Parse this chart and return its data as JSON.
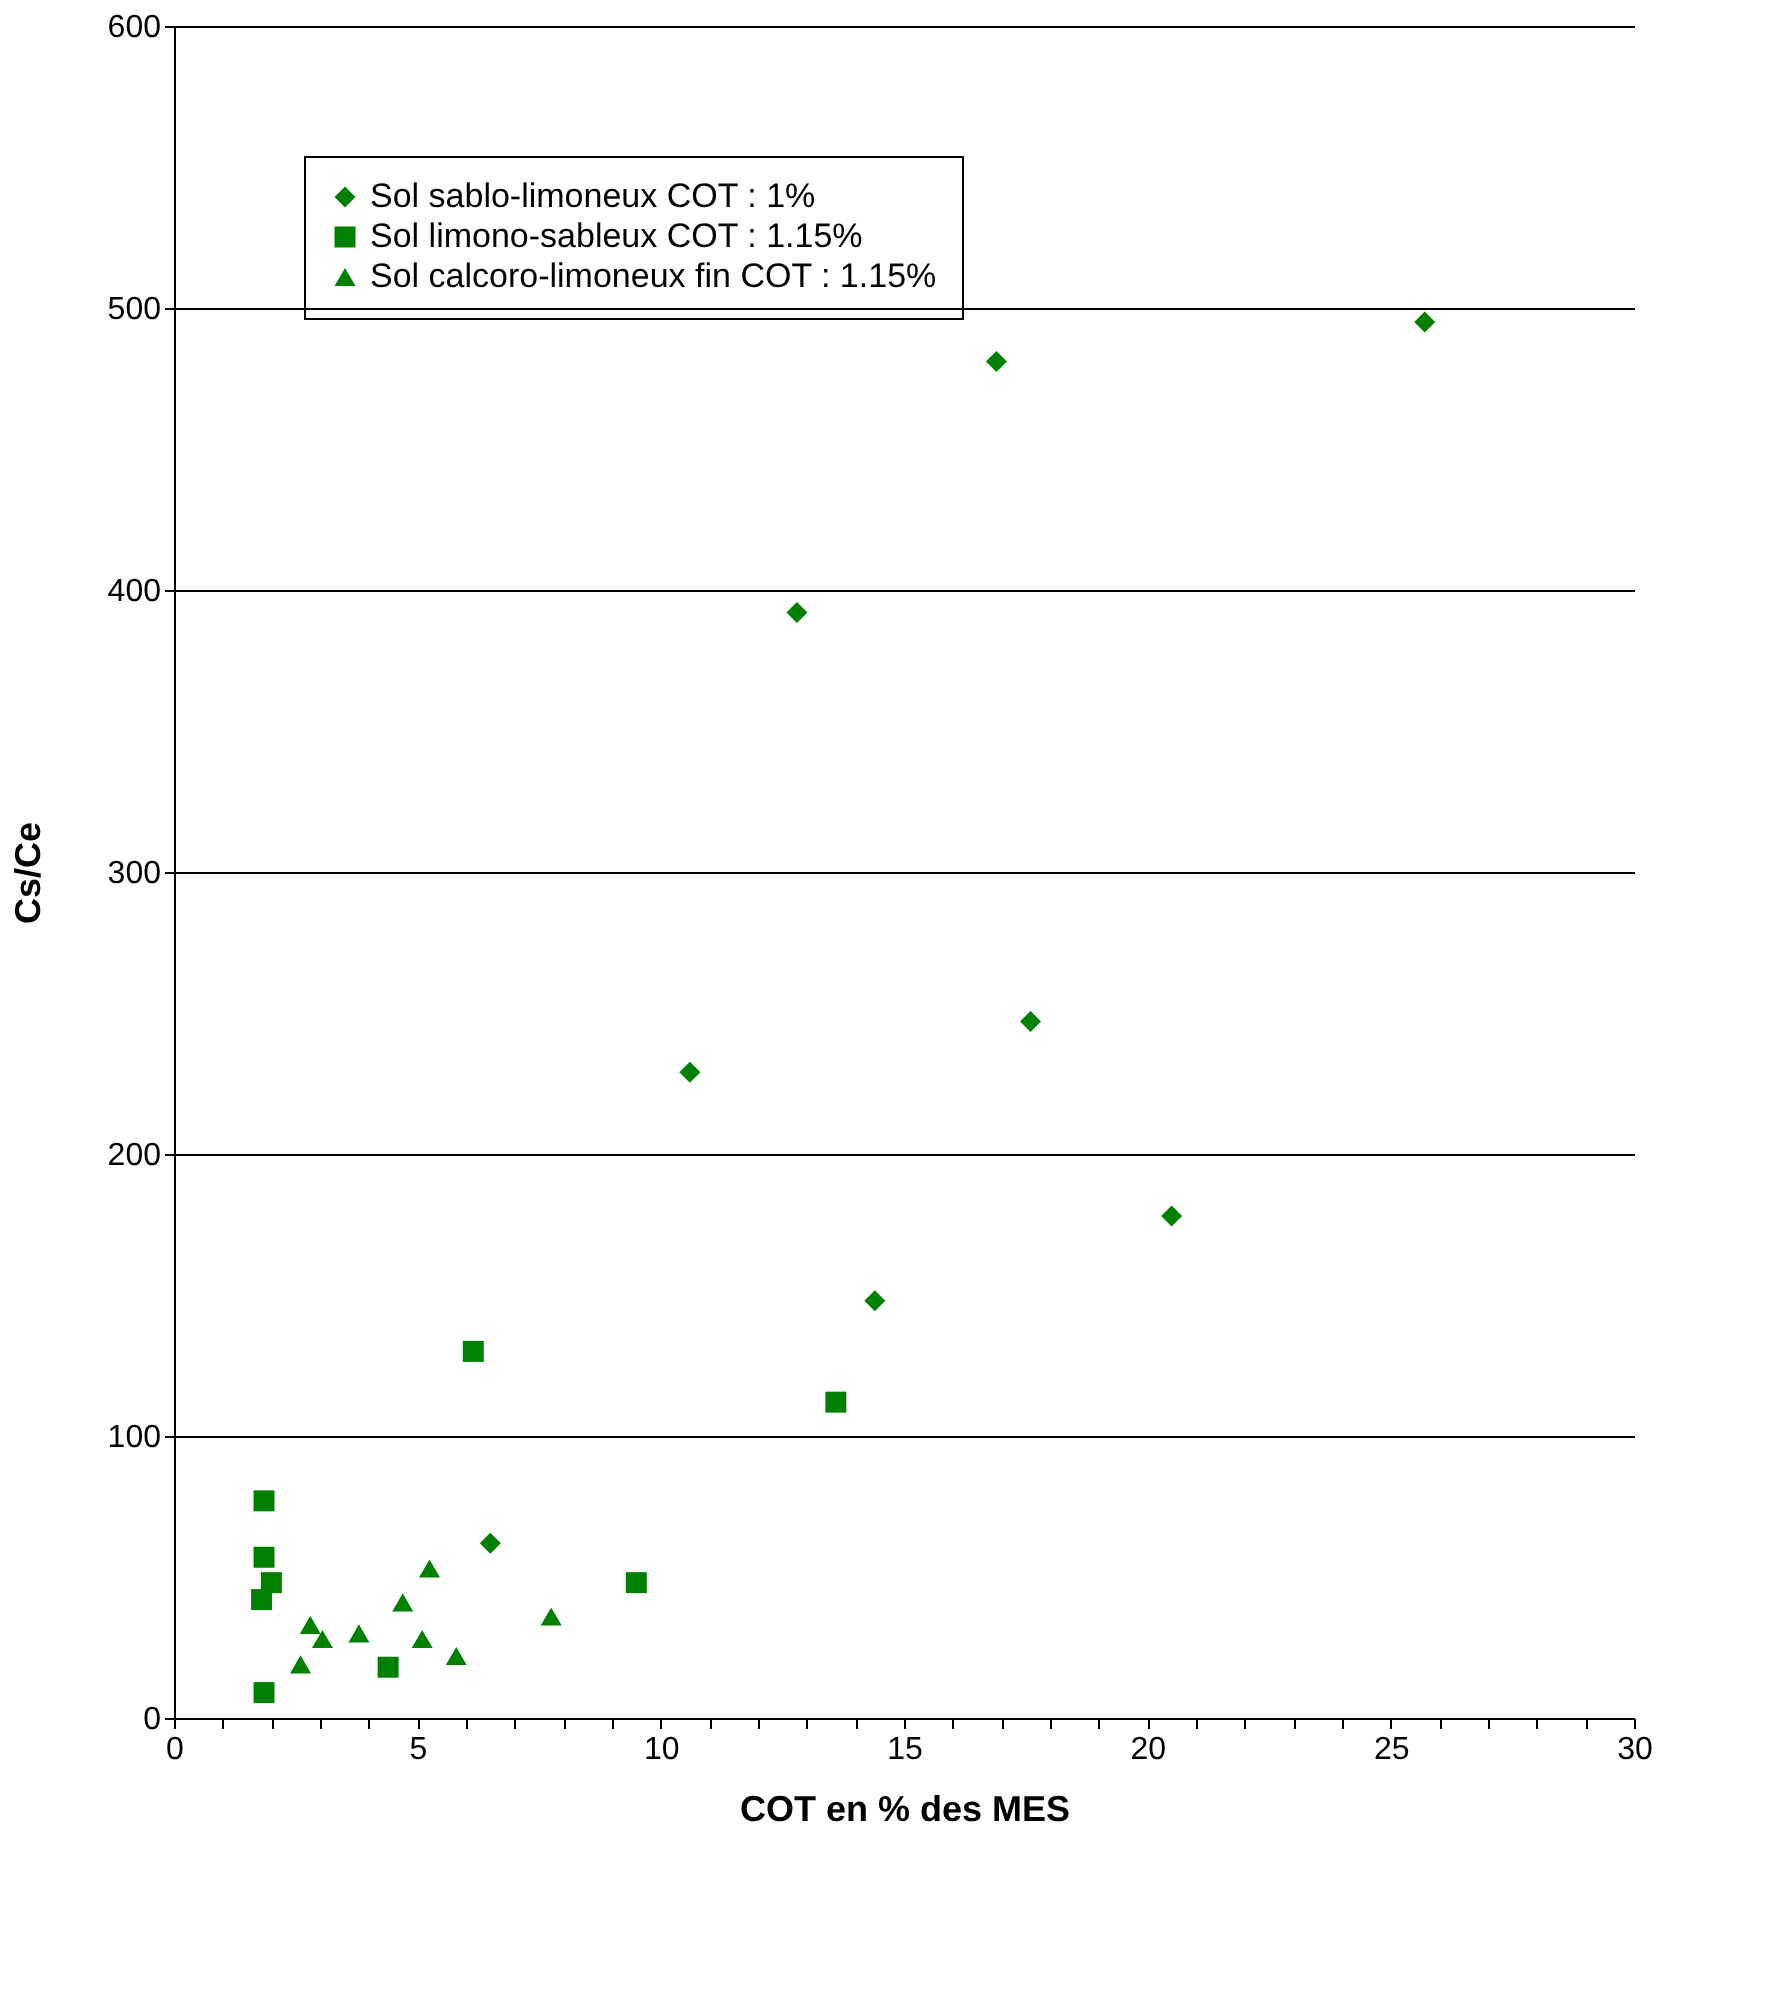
{
  "chart_data": {
    "type": "scatter",
    "xlabel": "COT en % des MES",
    "ylabel": "Cs/Ce",
    "xlim": [
      0,
      30
    ],
    "ylim": [
      0,
      600
    ],
    "xticks": [
      0,
      {
        "value": 1,
        "label": null
      },
      {
        "value": 2,
        "label": null
      },
      {
        "value": 3,
        "label": null
      },
      {
        "value": 4,
        "label": null
      },
      5,
      {
        "value": 6,
        "label": null
      },
      {
        "value": 7,
        "label": null
      },
      {
        "value": 8,
        "label": null
      },
      {
        "value": 9,
        "label": null
      },
      10,
      {
        "value": 11,
        "label": null
      },
      {
        "value": 12,
        "label": null
      },
      {
        "value": 13,
        "label": null
      },
      {
        "value": 14,
        "label": null
      },
      15,
      {
        "value": 16,
        "label": null
      },
      {
        "value": 17,
        "label": null
      },
      {
        "value": 18,
        "label": null
      },
      {
        "value": 19,
        "label": null
      },
      20,
      {
        "value": 21,
        "label": null
      },
      {
        "value": 22,
        "label": null
      },
      {
        "value": 23,
        "label": null
      },
      {
        "value": 24,
        "label": null
      },
      25,
      {
        "value": 26,
        "label": null
      },
      {
        "value": 27,
        "label": null
      },
      {
        "value": 28,
        "label": null
      },
      {
        "value": 29,
        "label": null
      },
      30
    ],
    "yticks": [
      0,
      100,
      200,
      300,
      400,
      500,
      600
    ],
    "grid": "y",
    "legend": "top left",
    "series": [
      {
        "name": "Sol sablo-limoneux COT : 1%",
        "color": "#008000",
        "marker": "diamond",
        "x": [
          6.5,
          10.6,
          12.8,
          14.4,
          16.9,
          17.6,
          20.5,
          25.7
        ],
        "values": [
          62,
          229,
          392,
          148,
          481,
          247,
          178,
          495
        ]
      },
      {
        "name": "Sol limono-sableux COT : 1.15%",
        "color": "#008000",
        "marker": "square",
        "x": [
          1.85,
          1.85,
          2.0,
          1.8,
          1.85,
          4.4,
          6.15,
          9.5,
          13.6
        ],
        "values": [
          77,
          57,
          48,
          42,
          9,
          18,
          130,
          48,
          112
        ]
      },
      {
        "name": "Sol calcoro-limoneux fin COT : 1.15%",
        "color": "#008000",
        "marker": "triangle",
        "x": [
          2.8,
          3.05,
          2.6,
          3.8,
          4.7,
          5.25,
          5.1,
          5.8,
          7.75
        ],
        "values": [
          33,
          28,
          19,
          30,
          41,
          53,
          28,
          22,
          36
        ]
      }
    ]
  }
}
